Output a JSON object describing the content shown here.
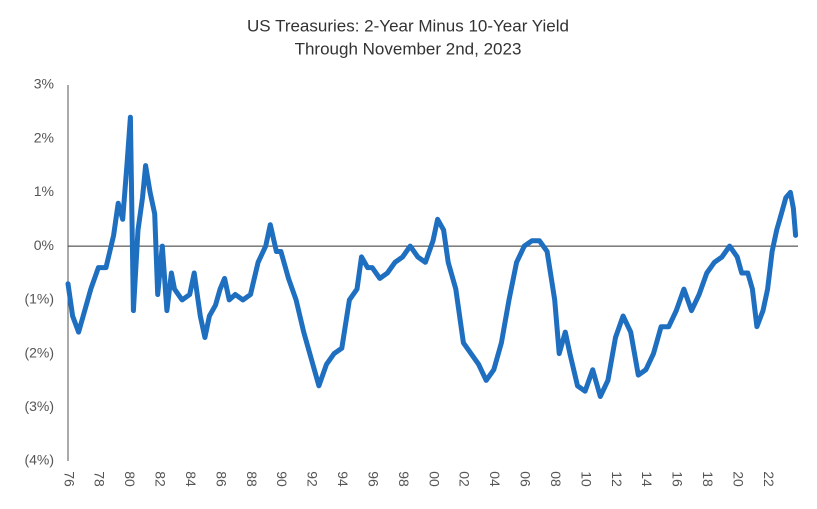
{
  "chart_data": {
    "type": "line",
    "title": "US Treasuries: 2-Year Minus 10-Year Yield",
    "subtitle": "Through November 2nd, 2023",
    "x": [
      1976.0,
      1976.3,
      1976.7,
      1977.0,
      1977.5,
      1978.0,
      1978.5,
      1979.0,
      1979.3,
      1979.6,
      1979.9,
      1980.1,
      1980.3,
      1980.6,
      1980.9,
      1981.1,
      1981.4,
      1981.7,
      1981.9,
      1982.2,
      1982.5,
      1982.8,
      1983.0,
      1983.5,
      1984.0,
      1984.3,
      1984.7,
      1985.0,
      1985.3,
      1985.7,
      1986.0,
      1986.3,
      1986.6,
      1987.0,
      1987.5,
      1988.0,
      1988.5,
      1989.0,
      1989.3,
      1989.7,
      1990.0,
      1990.5,
      1991.0,
      1991.5,
      1992.0,
      1992.5,
      1993.0,
      1993.5,
      1994.0,
      1994.5,
      1995.0,
      1995.3,
      1995.7,
      1996.0,
      1996.5,
      1997.0,
      1997.5,
      1998.0,
      1998.5,
      1999.0,
      1999.5,
      2000.0,
      2000.3,
      2000.7,
      2001.0,
      2001.5,
      2002.0,
      2002.5,
      2003.0,
      2003.5,
      2004.0,
      2004.5,
      2005.0,
      2005.5,
      2006.0,
      2006.5,
      2007.0,
      2007.5,
      2008.0,
      2008.3,
      2008.7,
      2009.0,
      2009.5,
      2010.0,
      2010.5,
      2011.0,
      2011.5,
      2012.0,
      2012.5,
      2013.0,
      2013.5,
      2014.0,
      2014.5,
      2015.0,
      2015.5,
      2016.0,
      2016.5,
      2017.0,
      2017.5,
      2018.0,
      2018.5,
      2019.0,
      2019.5,
      2020.0,
      2020.3,
      2020.7,
      2021.0,
      2021.3,
      2021.7,
      2022.0,
      2022.3,
      2022.6,
      2022.9,
      2023.2,
      2023.5,
      2023.7,
      2023.84
    ],
    "series": [
      {
        "name": "2-Year Minus 10-Year Yield",
        "color": "#1f6fc0",
        "values": [
          -0.7,
          -1.3,
          -1.6,
          -1.3,
          -0.8,
          -0.4,
          -0.4,
          0.2,
          0.8,
          0.5,
          1.6,
          2.4,
          -1.2,
          0.3,
          0.9,
          1.5,
          1.0,
          0.6,
          -0.9,
          0.0,
          -1.2,
          -0.5,
          -0.8,
          -1.0,
          -0.9,
          -0.5,
          -1.3,
          -1.7,
          -1.3,
          -1.1,
          -0.8,
          -0.6,
          -1.0,
          -0.9,
          -1.0,
          -0.9,
          -0.3,
          0.0,
          0.4,
          -0.1,
          -0.1,
          -0.6,
          -1.0,
          -1.6,
          -2.1,
          -2.6,
          -2.2,
          -2.0,
          -1.9,
          -1.0,
          -0.8,
          -0.2,
          -0.4,
          -0.4,
          -0.6,
          -0.5,
          -0.3,
          -0.2,
          0.0,
          -0.2,
          -0.3,
          0.1,
          0.5,
          0.3,
          -0.3,
          -0.8,
          -1.8,
          -2.0,
          -2.2,
          -2.5,
          -2.3,
          -1.8,
          -1.0,
          -0.3,
          0.0,
          0.1,
          0.1,
          -0.1,
          -1.0,
          -2.0,
          -1.6,
          -2.0,
          -2.6,
          -2.7,
          -2.3,
          -2.8,
          -2.5,
          -1.7,
          -1.3,
          -1.6,
          -2.4,
          -2.3,
          -2.0,
          -1.5,
          -1.5,
          -1.2,
          -0.8,
          -1.2,
          -0.9,
          -0.5,
          -0.3,
          -0.2,
          0.0,
          -0.2,
          -0.5,
          -0.5,
          -0.8,
          -1.5,
          -1.2,
          -0.8,
          -0.1,
          0.3,
          0.6,
          0.9,
          1.0,
          0.7,
          0.2
        ]
      }
    ],
    "xlim": [
      1976,
      2024
    ],
    "xticks": [
      {
        "value": 1976,
        "label": "76"
      },
      {
        "value": 1978,
        "label": "78"
      },
      {
        "value": 1980,
        "label": "80"
      },
      {
        "value": 1982,
        "label": "82"
      },
      {
        "value": 1984,
        "label": "84"
      },
      {
        "value": 1986,
        "label": "86"
      },
      {
        "value": 1988,
        "label": "88"
      },
      {
        "value": 1990,
        "label": "90"
      },
      {
        "value": 1992,
        "label": "92"
      },
      {
        "value": 1994,
        "label": "94"
      },
      {
        "value": 1996,
        "label": "96"
      },
      {
        "value": 1998,
        "label": "98"
      },
      {
        "value": 2000,
        "label": "00"
      },
      {
        "value": 2002,
        "label": "02"
      },
      {
        "value": 2004,
        "label": "04"
      },
      {
        "value": 2006,
        "label": "06"
      },
      {
        "value": 2008,
        "label": "08"
      },
      {
        "value": 2010,
        "label": "10"
      },
      {
        "value": 2012,
        "label": "12"
      },
      {
        "value": 2014,
        "label": "14"
      },
      {
        "value": 2016,
        "label": "16"
      },
      {
        "value": 2018,
        "label": "18"
      },
      {
        "value": 2020,
        "label": "20"
      },
      {
        "value": 2022,
        "label": "22"
      }
    ],
    "ylim": [
      -4,
      3
    ],
    "yticks": [
      {
        "value": -4,
        "label": "(4%)"
      },
      {
        "value": -3,
        "label": "(3%)"
      },
      {
        "value": -2,
        "label": "(2%)"
      },
      {
        "value": -1,
        "label": "(1%)"
      },
      {
        "value": 0,
        "label": "0%"
      },
      {
        "value": 1,
        "label": "1%"
      },
      {
        "value": 2,
        "label": "2%"
      },
      {
        "value": 3,
        "label": "3%"
      }
    ],
    "reference_line": 0,
    "grid": false
  }
}
